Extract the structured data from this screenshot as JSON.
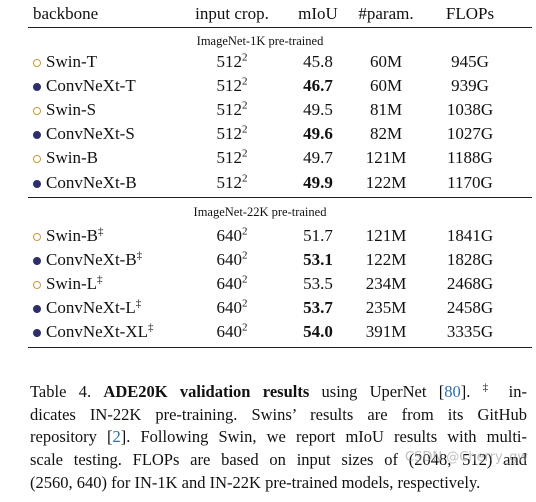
{
  "table": {
    "header": [
      "backbone",
      "input crop.",
      "mIoU",
      "#param.",
      "FLOPs"
    ],
    "sections": [
      {
        "title": "ImageNet-1K pre-trained",
        "rows": [
          {
            "marker": "open",
            "name": "Swin-T",
            "crop": "512",
            "crop_sup": "2",
            "miou": "45.8",
            "bold": false,
            "params": "60M",
            "flops": "945G"
          },
          {
            "marker": "filled",
            "name": "ConvNeXt-T",
            "crop": "512",
            "crop_sup": "2",
            "miou": "46.7",
            "bold": true,
            "params": "60M",
            "flops": "939G"
          },
          {
            "marker": "open",
            "name": "Swin-S",
            "crop": "512",
            "crop_sup": "2",
            "miou": "49.5",
            "bold": false,
            "params": "81M",
            "flops": "1038G"
          },
          {
            "marker": "filled",
            "name": "ConvNeXt-S",
            "crop": "512",
            "crop_sup": "2",
            "miou": "49.6",
            "bold": true,
            "params": "82M",
            "flops": "1027G"
          },
          {
            "marker": "open",
            "name": "Swin-B",
            "crop": "512",
            "crop_sup": "2",
            "miou": "49.7",
            "bold": false,
            "params": "121M",
            "flops": "1188G"
          },
          {
            "marker": "filled",
            "name": "ConvNeXt-B",
            "crop": "512",
            "crop_sup": "2",
            "miou": "49.9",
            "bold": true,
            "params": "122M",
            "flops": "1170G"
          }
        ]
      },
      {
        "title": "ImageNet-22K pre-trained",
        "rows": [
          {
            "marker": "open",
            "name": "Swin-B",
            "name_sup": "‡",
            "crop": "640",
            "crop_sup": "2",
            "miou": "51.7",
            "bold": false,
            "params": "121M",
            "flops": "1841G"
          },
          {
            "marker": "filled",
            "name": "ConvNeXt-B",
            "name_sup": "‡",
            "crop": "640",
            "crop_sup": "2",
            "miou": "53.1",
            "bold": true,
            "params": "122M",
            "flops": "1828G"
          },
          {
            "marker": "open",
            "name": "Swin-L",
            "name_sup": "‡",
            "crop": "640",
            "crop_sup": "2",
            "miou": "53.5",
            "bold": false,
            "params": "234M",
            "flops": "2468G"
          },
          {
            "marker": "filled",
            "name": "ConvNeXt-L",
            "name_sup": "‡",
            "crop": "640",
            "crop_sup": "2",
            "miou": "53.7",
            "bold": true,
            "params": "235M",
            "flops": "2458G"
          },
          {
            "marker": "filled",
            "name": "ConvNeXt-XL",
            "name_sup": "‡",
            "crop": "640",
            "crop_sup": "2",
            "miou": "54.0",
            "bold": true,
            "params": "391M",
            "flops": "3335G"
          }
        ]
      }
    ]
  },
  "caption": {
    "lines": [
      [
        {
          "text": "Table 4. "
        },
        {
          "text": "ADE20K validation results",
          "style": "bold"
        },
        {
          "text": " using UperNet ["
        },
        {
          "text": "80",
          "style": "link"
        },
        {
          "text": "]. "
        },
        {
          "text": "‡",
          "style": "sup"
        },
        {
          "text": " in-"
        }
      ],
      [
        {
          "text": "dicates IN-22K pre-training. Swins’ results are from its GitHub"
        }
      ],
      [
        {
          "text": "repository ["
        },
        {
          "text": "2",
          "style": "link"
        },
        {
          "text": "]. Following Swin, we report mIoU results with multi-"
        }
      ],
      [
        {
          "text": "scale testing. FLOPs are based on input sizes of (2048, 512) and"
        }
      ],
      [
        {
          "text": "(2560, 640) for IN-1K and IN-22K pre-trained models, respectively."
        }
      ]
    ]
  },
  "watermark": "CSDN @Cherry_gw"
}
